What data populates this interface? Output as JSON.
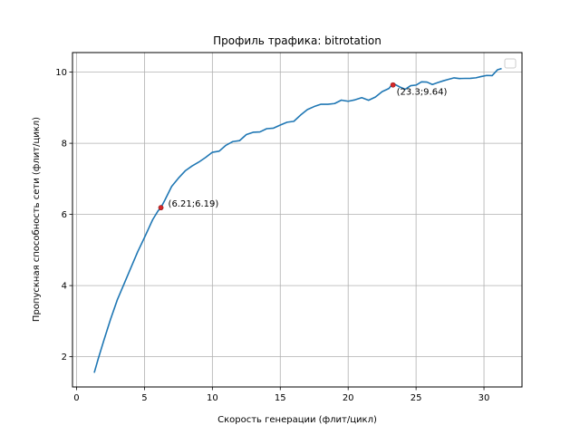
{
  "chart_data": {
    "type": "line",
    "title": "Профиль трафика: bitrotation",
    "xlabel": "Скорость генерации (флит/цикл)",
    "ylabel": "Пропускная способность сети (флит/цикл)",
    "xlim": [
      -0.3,
      32.8
    ],
    "ylim": [
      1.15,
      10.55
    ],
    "xticks": [
      0,
      5,
      10,
      15,
      20,
      25,
      30
    ],
    "yticks": [
      2,
      4,
      6,
      8,
      10
    ],
    "grid": true,
    "legend": "top-right, empty",
    "colors": {
      "line": "#1f77b4",
      "marker": "#d62728",
      "grid": "#b0b0b0"
    },
    "series": [
      {
        "x": [
          1.3,
          1.6,
          2.0,
          2.5,
          3.0,
          3.5,
          4.0,
          4.5,
          5.0,
          5.3,
          5.6,
          6.0,
          6.21,
          6.5,
          7.0,
          7.5,
          8.0,
          8.5,
          9.0,
          9.5,
          10.0,
          10.5,
          11.0,
          11.5,
          12.0,
          12.5,
          13.0,
          13.5,
          14.0,
          14.5,
          15.0,
          15.5,
          16.0,
          16.5,
          17.0,
          17.5,
          18.0,
          18.5,
          19.0,
          19.5,
          20.0,
          20.5,
          21.0,
          21.5,
          22.0,
          22.5,
          23.0,
          23.3,
          23.8,
          24.2,
          24.6,
          25.0,
          25.4,
          25.8,
          26.2,
          26.6,
          27.0,
          27.4,
          27.8,
          28.2,
          28.6,
          29.0,
          29.4,
          29.8,
          30.2,
          30.6,
          31.0,
          31.3
        ],
        "y": [
          1.55,
          1.95,
          2.45,
          3.05,
          3.6,
          4.05,
          4.5,
          4.95,
          5.35,
          5.6,
          5.85,
          6.1,
          6.19,
          6.4,
          6.75,
          7.0,
          7.25,
          7.35,
          7.5,
          7.6,
          7.7,
          7.8,
          7.95,
          8.05,
          8.1,
          8.2,
          8.3,
          8.35,
          8.4,
          8.45,
          8.5,
          8.55,
          8.65,
          8.8,
          8.95,
          9.05,
          9.05,
          9.1,
          9.15,
          9.2,
          9.2,
          9.2,
          9.25,
          9.25,
          9.3,
          9.45,
          9.55,
          9.64,
          9.6,
          9.55,
          9.6,
          9.65,
          9.7,
          9.7,
          9.7,
          9.7,
          9.75,
          9.8,
          9.8,
          9.85,
          9.85,
          9.8,
          9.85,
          9.85,
          9.9,
          9.95,
          10.05,
          10.1
        ]
      }
    ],
    "markers": [
      {
        "x": 6.21,
        "y": 6.19,
        "label": "(6.21;6.19)"
      },
      {
        "x": 23.3,
        "y": 9.64,
        "label": "(23.3;9.64)"
      }
    ]
  }
}
